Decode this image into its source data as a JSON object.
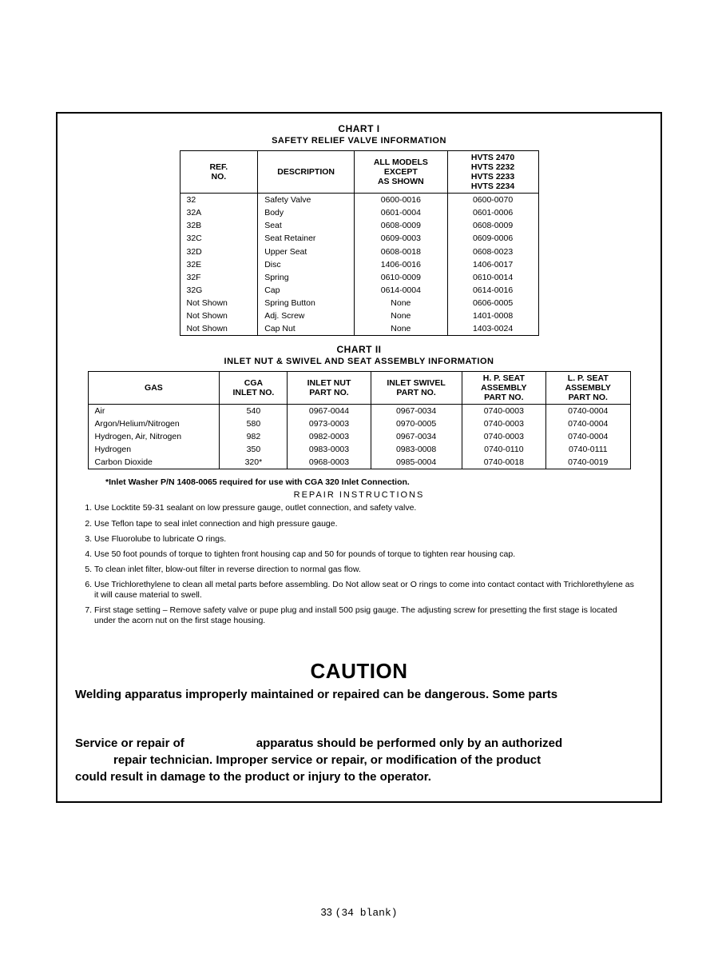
{
  "chart1": {
    "title": "CHART I",
    "subtitle": "SAFETY RELIEF VALVE INFORMATION",
    "headers": [
      "REF.\nNO.",
      "DESCRIPTION",
      "ALL MODELS\nEXCEPT\nAS SHOWN",
      "HVTS 2470\nHVTS 2232\nHVTS 2233\nHVTS 2234"
    ],
    "rows": [
      [
        "32",
        "Safety Valve",
        "0600-0016",
        "0600-0070"
      ],
      [
        "32A",
        "Body",
        "0601-0004",
        "0601-0006"
      ],
      [
        "32B",
        "Seat",
        "0608-0009",
        "0608-0009"
      ],
      [
        "32C",
        "Seat Retainer",
        "0609-0003",
        "0609-0006"
      ],
      [
        "32D",
        "Upper Seat",
        "0608-0018",
        "0608-0023"
      ],
      [
        "32E",
        "Disc",
        "1406-0016",
        "1406-0017"
      ],
      [
        "32F",
        "Spring",
        "0610-0009",
        "0610-0014"
      ],
      [
        "32G",
        "Cap",
        "0614-0004",
        "0614-0016"
      ],
      [
        "Not Shown",
        "Spring Button",
        "None",
        "0606-0005"
      ],
      [
        "Not Shown",
        "Adj. Screw",
        "None",
        "1401-0008"
      ],
      [
        "Not Shown",
        "Cap Nut",
        "None",
        "1403-0024"
      ]
    ]
  },
  "chart2": {
    "title": "CHART II",
    "subtitle": "INLET NUT & SWIVEL AND SEAT ASSEMBLY INFORMATION",
    "headers": [
      "GAS",
      "CGA\nINLET NO.",
      "INLET NUT\nPART NO.",
      "INLET SWIVEL\nPART NO.",
      "H. P. SEAT\nASSEMBLY\nPART NO.",
      "L. P. SEAT\nASSEMBLY\nPART NO."
    ],
    "rows": [
      [
        "Air",
        "540",
        "0967-0044",
        "0967-0034",
        "0740-0003",
        "0740-0004"
      ],
      [
        "Argon/Helium/Nitrogen",
        "580",
        "0973-0003",
        "0970-0005",
        "0740-0003",
        "0740-0004"
      ],
      [
        "Hydrogen, Air, Nitrogen",
        "982",
        "0982-0003",
        "0967-0034",
        "0740-0003",
        "0740-0004"
      ],
      [
        "Hydrogen",
        "350",
        "0983-0003",
        "0983-0008",
        "0740-0110",
        "0740-0111"
      ],
      [
        "Carbon Dioxide",
        "320*",
        "0968-0003",
        "0985-0004",
        "0740-0018",
        "0740-0019"
      ]
    ],
    "footnote": "*Inlet Washer P/N 1408-0065 required for use with CGA 320 Inlet Connection."
  },
  "repair": {
    "title": "REPAIR  INSTRUCTIONS",
    "items": [
      "Use Locktite 59-31 sealant on low pressure gauge, outlet connection, and safety valve.",
      "Use Teflon tape to seal inlet connection and high pressure gauge.",
      "Use Fluorolube to lubricate  O  rings.",
      "Use 50 foot pounds of torque to tighten front housing cap and 50 for pounds of torque to tighten rear housing cap.",
      "To clean inlet filter, blow-out filter in reverse direction to normal gas flow.",
      "Use  Trichlorethylene to  clean all metal parts before assembling.  Do Not allow seat or  O  rings to come into contact contact with Trichlorethylene as it will cause material to swell.",
      "First stage setting – Remove safety valve or pupe plug and install 500 psig gauge.  The adjusting screw for presetting the first stage is located under the acorn nut on the first stage housing."
    ]
  },
  "caution": {
    "heading": "CAUTION",
    "line1": "Welding apparatus improperly maintained or repaired can be dangerous. Some parts",
    "line2a": "Service  or  repair  of",
    "line2b": "apparatus  should  be  performed  only  by  an  authorized",
    "line3a": "repair technician. Improper service or repair, or modification of the product",
    "line3b": "could result in damage to the product or injury to the operator."
  },
  "page": {
    "num": "33",
    "blank": "(34 blank)"
  }
}
